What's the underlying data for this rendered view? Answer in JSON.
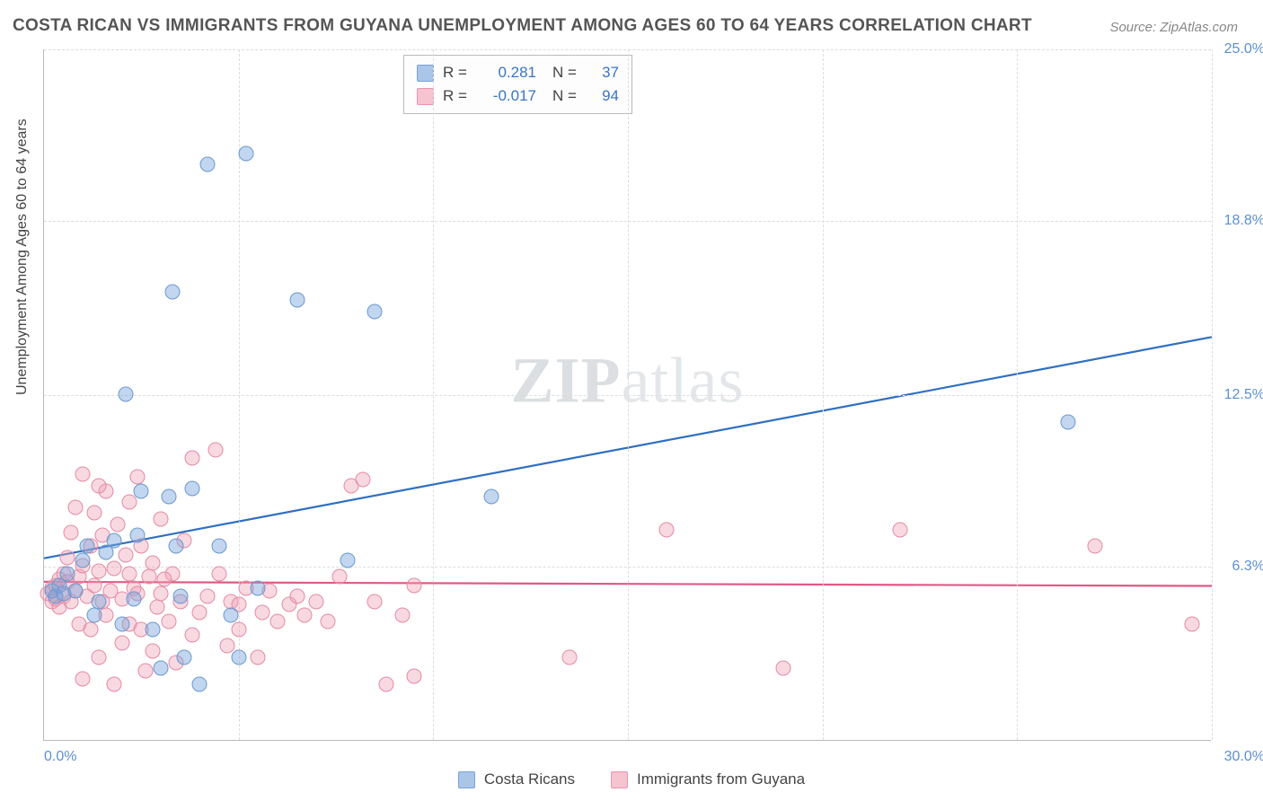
{
  "title": "COSTA RICAN VS IMMIGRANTS FROM GUYANA UNEMPLOYMENT AMONG AGES 60 TO 64 YEARS CORRELATION CHART",
  "source": "Source: ZipAtlas.com",
  "watermark": {
    "bold": "ZIP",
    "rest": "atlas"
  },
  "y_axis_label": "Unemployment Among Ages 60 to 64 years",
  "chart": {
    "type": "scatter",
    "xlim": [
      0,
      30
    ],
    "ylim": [
      0,
      25
    ],
    "x_ticks": [
      0,
      5,
      10,
      15,
      20,
      25,
      30
    ],
    "y_ticks": [
      6.3,
      12.5,
      18.8,
      25.0
    ],
    "y_tick_labels": [
      "6.3%",
      "12.5%",
      "18.8%",
      "25.0%"
    ],
    "x_min_label": "0.0%",
    "x_max_label": "30.0%",
    "background_color": "#ffffff",
    "grid_color": "#dddddd",
    "axis_color": "#bbbbbb",
    "tick_label_color": "#5b8fd6",
    "marker_radius": 8.5
  },
  "series": [
    {
      "name": "Costa Ricans",
      "fill": "rgba(120,165,220,0.45)",
      "stroke": "#6a98cf",
      "swatch_fill": "#a9c5e8",
      "swatch_border": "#7aa3d4",
      "trend_color": "#2f6fc1",
      "R": "0.281",
      "N": "37",
      "trend": {
        "x1": 0,
        "y1": 6.6,
        "x2": 30,
        "y2": 14.6
      },
      "points": [
        [
          0.2,
          5.4
        ],
        [
          0.3,
          5.2
        ],
        [
          0.4,
          5.6
        ],
        [
          0.5,
          5.3
        ],
        [
          0.6,
          6.0
        ],
        [
          0.8,
          5.4
        ],
        [
          1.0,
          6.5
        ],
        [
          1.1,
          7.0
        ],
        [
          1.3,
          4.5
        ],
        [
          1.4,
          5.0
        ],
        [
          1.6,
          6.8
        ],
        [
          1.8,
          7.2
        ],
        [
          2.0,
          4.2
        ],
        [
          2.1,
          12.5
        ],
        [
          2.3,
          5.1
        ],
        [
          2.4,
          7.4
        ],
        [
          2.5,
          9.0
        ],
        [
          2.8,
          4.0
        ],
        [
          3.0,
          2.6
        ],
        [
          3.2,
          8.8
        ],
        [
          3.3,
          16.2
        ],
        [
          3.4,
          7.0
        ],
        [
          3.5,
          5.2
        ],
        [
          3.6,
          3.0
        ],
        [
          3.8,
          9.1
        ],
        [
          4.0,
          2.0
        ],
        [
          4.2,
          20.8
        ],
        [
          4.5,
          7.0
        ],
        [
          4.8,
          4.5
        ],
        [
          5.0,
          3.0
        ],
        [
          5.2,
          21.2
        ],
        [
          5.5,
          5.5
        ],
        [
          6.5,
          15.9
        ],
        [
          7.8,
          6.5
        ],
        [
          8.5,
          15.5
        ],
        [
          11.5,
          8.8
        ],
        [
          26.3,
          11.5
        ]
      ]
    },
    {
      "name": "Immigrants from Guyana",
      "fill": "rgba(240,160,180,0.40)",
      "stroke": "#e48aa3",
      "swatch_fill": "#f6c3d0",
      "swatch_border": "#e995ad",
      "trend_color": "#e05a84",
      "R": "-0.017",
      "N": "94",
      "trend": {
        "x1": 0,
        "y1": 5.75,
        "x2": 30,
        "y2": 5.6
      },
      "points": [
        [
          0.1,
          5.3
        ],
        [
          0.2,
          5.5
        ],
        [
          0.2,
          5.0
        ],
        [
          0.3,
          5.6
        ],
        [
          0.3,
          5.1
        ],
        [
          0.4,
          5.8
        ],
        [
          0.4,
          4.8
        ],
        [
          0.5,
          6.0
        ],
        [
          0.5,
          5.2
        ],
        [
          0.6,
          5.7
        ],
        [
          0.6,
          6.6
        ],
        [
          0.7,
          5.0
        ],
        [
          0.7,
          7.5
        ],
        [
          0.8,
          5.4
        ],
        [
          0.8,
          8.4
        ],
        [
          0.9,
          5.9
        ],
        [
          0.9,
          4.2
        ],
        [
          1.0,
          6.3
        ],
        [
          1.0,
          9.6
        ],
        [
          1.1,
          5.2
        ],
        [
          1.2,
          7.0
        ],
        [
          1.2,
          4.0
        ],
        [
          1.3,
          5.6
        ],
        [
          1.3,
          8.2
        ],
        [
          1.4,
          6.1
        ],
        [
          1.4,
          3.0
        ],
        [
          1.5,
          5.0
        ],
        [
          1.5,
          7.4
        ],
        [
          1.6,
          4.5
        ],
        [
          1.6,
          9.0
        ],
        [
          1.7,
          5.4
        ],
        [
          1.8,
          6.2
        ],
        [
          1.8,
          2.0
        ],
        [
          1.9,
          7.8
        ],
        [
          2.0,
          5.1
        ],
        [
          2.0,
          3.5
        ],
        [
          2.1,
          6.7
        ],
        [
          2.2,
          4.2
        ],
        [
          2.2,
          8.6
        ],
        [
          2.3,
          5.5
        ],
        [
          2.4,
          5.3
        ],
        [
          2.4,
          9.5
        ],
        [
          2.5,
          4.0
        ],
        [
          2.5,
          7.0
        ],
        [
          2.6,
          2.5
        ],
        [
          2.7,
          5.9
        ],
        [
          2.8,
          3.2
        ],
        [
          2.8,
          6.4
        ],
        [
          2.9,
          4.8
        ],
        [
          3.0,
          8.0
        ],
        [
          3.0,
          5.3
        ],
        [
          3.2,
          4.3
        ],
        [
          3.3,
          6.0
        ],
        [
          3.4,
          2.8
        ],
        [
          3.5,
          5.0
        ],
        [
          3.6,
          7.2
        ],
        [
          3.8,
          3.8
        ],
        [
          3.8,
          10.2
        ],
        [
          4.0,
          4.6
        ],
        [
          4.2,
          5.2
        ],
        [
          4.4,
          10.5
        ],
        [
          4.5,
          6.0
        ],
        [
          4.7,
          3.4
        ],
        [
          4.8,
          5.0
        ],
        [
          5.0,
          4.0
        ],
        [
          5.0,
          4.9
        ],
        [
          5.2,
          5.5
        ],
        [
          5.5,
          3.0
        ],
        [
          5.6,
          4.6
        ],
        [
          5.8,
          5.4
        ],
        [
          6.0,
          4.3
        ],
        [
          6.3,
          4.9
        ],
        [
          6.5,
          5.2
        ],
        [
          6.7,
          4.5
        ],
        [
          7.0,
          5.0
        ],
        [
          7.3,
          4.3
        ],
        [
          7.6,
          5.9
        ],
        [
          7.9,
          9.2
        ],
        [
          8.2,
          9.4
        ],
        [
          8.5,
          5.0
        ],
        [
          8.8,
          2.0
        ],
        [
          9.2,
          4.5
        ],
        [
          9.5,
          5.6
        ],
        [
          9.5,
          2.3
        ],
        [
          13.5,
          3.0
        ],
        [
          16.0,
          7.6
        ],
        [
          19.0,
          2.6
        ],
        [
          22.0,
          7.6
        ],
        [
          27.0,
          7.0
        ],
        [
          29.5,
          4.2
        ],
        [
          1.0,
          2.2
        ],
        [
          1.4,
          9.2
        ],
        [
          2.2,
          6.0
        ],
        [
          3.1,
          5.8
        ]
      ]
    }
  ],
  "legend_top": {
    "R_label": "R =",
    "N_label": "N ="
  }
}
